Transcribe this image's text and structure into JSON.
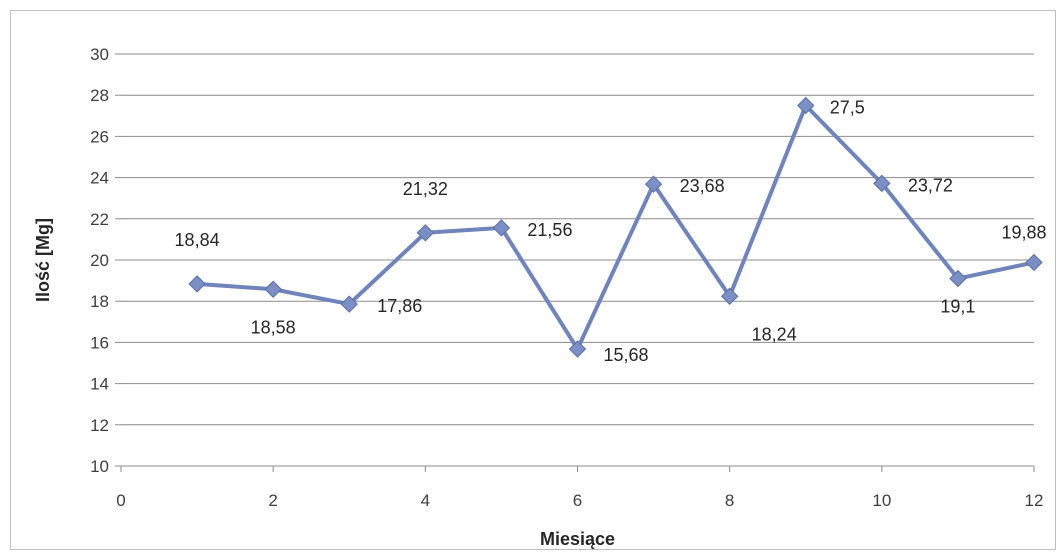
{
  "chart_data": {
    "type": "line",
    "title": "",
    "xlabel": "Miesiące",
    "ylabel": "Ilość [Mg]",
    "xlim": [
      0,
      12
    ],
    "ylim": [
      10,
      30
    ],
    "x_ticks": [
      "0",
      "2",
      "4",
      "6",
      "8",
      "10",
      "12"
    ],
    "y_ticks": [
      "10",
      "12",
      "14",
      "16",
      "18",
      "20",
      "22",
      "24",
      "26",
      "28",
      "30"
    ],
    "grid": true,
    "legend": "none",
    "marker": "diamond",
    "series_color": "#6f84bb",
    "marker_color": "#7b8fc4",
    "series": [
      {
        "x": [
          1,
          2,
          3,
          4,
          5,
          6,
          7,
          8,
          9,
          10,
          11,
          12
        ],
        "values": [
          18.84,
          18.58,
          17.86,
          21.32,
          21.56,
          15.68,
          23.68,
          18.24,
          27.5,
          23.72,
          19.1,
          19.88
        ],
        "labels": [
          "18,84",
          "18,58",
          "17,86",
          "21,32",
          "21,56",
          "15,68",
          "23,68",
          "18,24",
          "27,5",
          "23,72",
          "19,1",
          "19,88"
        ]
      }
    ]
  }
}
